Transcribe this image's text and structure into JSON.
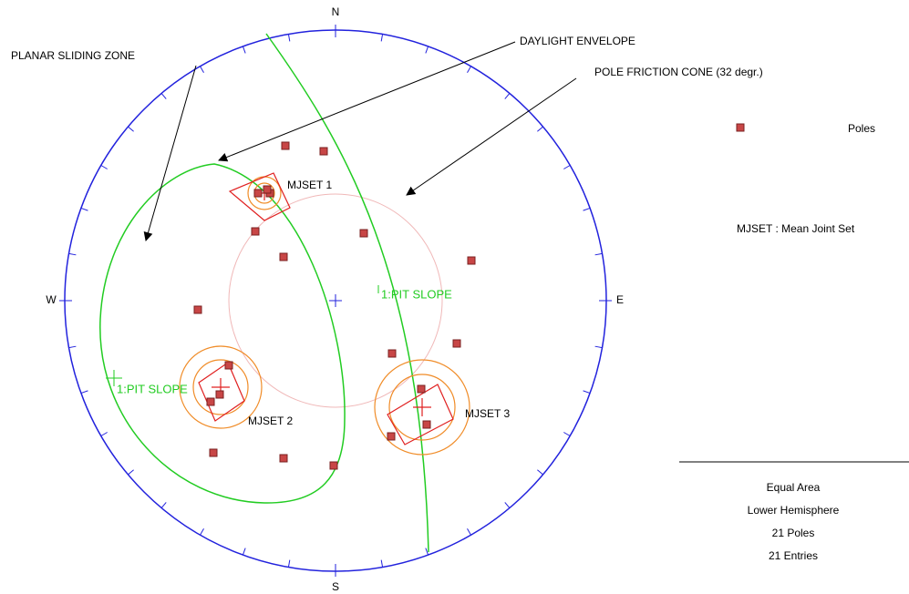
{
  "compass": {
    "north": "N",
    "south": "S",
    "west": "W",
    "east": "E"
  },
  "annotations": {
    "planar_sliding_zone": "PLANAR SLIDING ZONE",
    "daylight_envelope": "DAYLIGHT ENVELOPE",
    "pole_friction_cone": "POLE FRICTION CONE (32 degr.)"
  },
  "sets": [
    "MJSET 1",
    "MJSET 2",
    "MJSET 3"
  ],
  "slope_labels": [
    "1:PIT SLOPE",
    "1:PIT SLOPE"
  ],
  "legend": {
    "poles": "Poles",
    "mjset": "MJSET : Mean Joint Set"
  },
  "info": [
    "Equal Area",
    "Lower Hemisphere",
    "21 Poles",
    "21 Entries"
  ]
}
